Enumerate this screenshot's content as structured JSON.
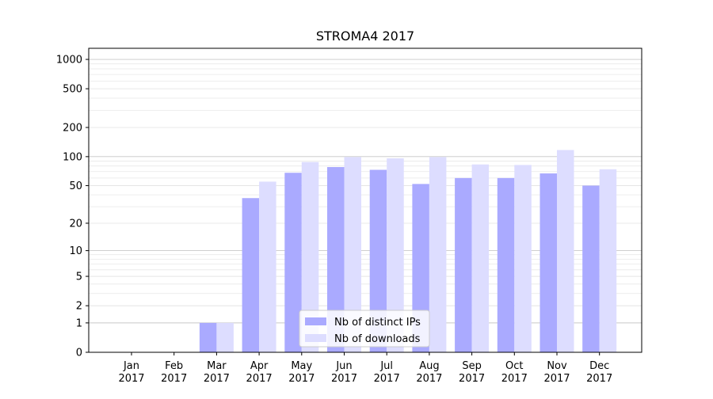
{
  "chart_data": {
    "type": "bar",
    "title": "STROMA4 2017",
    "xlabel": "",
    "ylabel": "",
    "yscale": "symlog",
    "ylim": [
      0,
      1300
    ],
    "yticks": [
      0,
      1,
      2,
      5,
      10,
      20,
      50,
      100,
      200,
      500,
      1000
    ],
    "ytick_labels": [
      "0",
      "1",
      "2",
      "5",
      "10",
      "20",
      "50",
      "100",
      "200",
      "500",
      "1000"
    ],
    "categories": [
      [
        "Jan",
        "2017"
      ],
      [
        "Feb",
        "2017"
      ],
      [
        "Mar",
        "2017"
      ],
      [
        "Apr",
        "2017"
      ],
      [
        "May",
        "2017"
      ],
      [
        "Jun",
        "2017"
      ],
      [
        "Jul",
        "2017"
      ],
      [
        "Aug",
        "2017"
      ],
      [
        "Sep",
        "2017"
      ],
      [
        "Oct",
        "2017"
      ],
      [
        "Nov",
        "2017"
      ],
      [
        "Dec",
        "2017"
      ]
    ],
    "series": [
      {
        "name": "Nb of distinct IPs",
        "color": "#aaaaff",
        "values": [
          0,
          0,
          1,
          37,
          68,
          78,
          73,
          52,
          60,
          60,
          67,
          50
        ]
      },
      {
        "name": "Nb of downloads",
        "color": "#ddddff",
        "values": [
          0,
          0,
          1,
          55,
          88,
          99,
          96,
          99,
          83,
          82,
          117,
          74
        ]
      }
    ],
    "grid": "horizontal",
    "legend_position": "lower-center"
  }
}
